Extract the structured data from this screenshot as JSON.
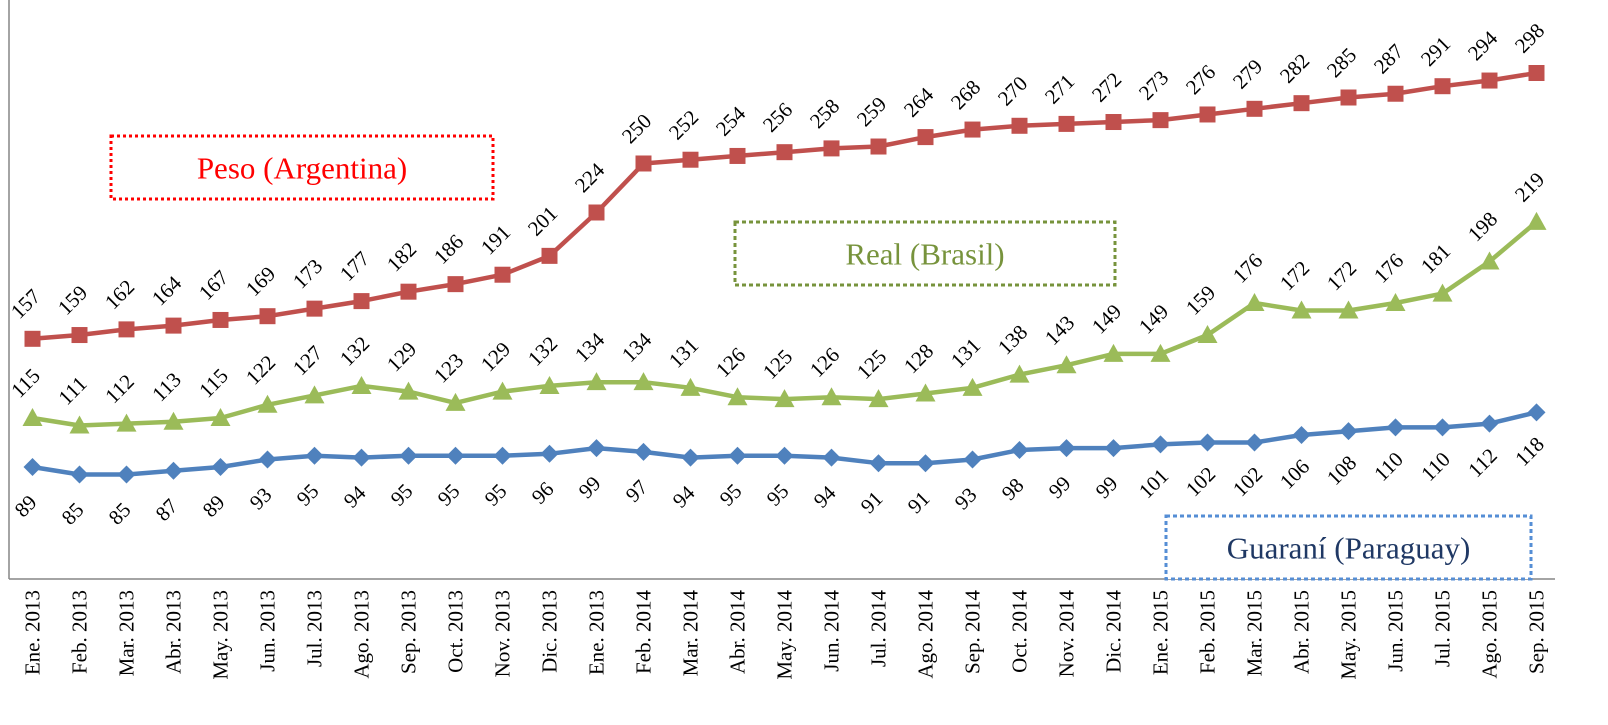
{
  "chart_data": {
    "type": "line",
    "title": "",
    "xlabel": "",
    "ylabel": "",
    "ylim": [
      70,
      305
    ],
    "grid": false,
    "categories": [
      "Ene. 2013",
      "Feb. 2013",
      "Mar. 2013",
      "Abr. 2013",
      "May. 2013",
      "Jun. 2013",
      "Jul. 2013",
      "Ago. 2013",
      "Sep. 2013",
      "Oct. 2013",
      "Nov. 2013",
      "Dic. 2013",
      "Ene. 2013",
      "Feb. 2014",
      "Mar. 2014",
      "Abr. 2014",
      "May. 2014",
      "Jun. 2014",
      "Jul. 2014",
      "Ago. 2014",
      "Sep. 2014",
      "Oct. 2014",
      "Nov. 2014",
      "Dic. 2014",
      "Ene. 2015",
      "Feb. 2015",
      "Mar. 2015",
      "Abr. 2015",
      "May. 2015",
      "Jun. 2015",
      "Jul. 2015",
      "Ago. 2015",
      "Sep. 2015"
    ],
    "series": [
      {
        "name": "Peso (Argentina)",
        "color": "#C0504D",
        "marker": "square",
        "label_position": "above",
        "legend_color": "#FF0000",
        "legend_border": "#FF0000",
        "values": [
          157,
          159,
          162,
          164,
          167,
          169,
          173,
          177,
          182,
          186,
          191,
          201,
          224,
          250,
          252,
          254,
          256,
          258,
          259,
          264,
          268,
          270,
          271,
          272,
          273,
          276,
          279,
          282,
          285,
          287,
          291,
          294,
          298
        ]
      },
      {
        "name": "Real (Brasil)",
        "color": "#9BBB59",
        "marker": "triangle",
        "label_position": "above",
        "legend_color": "#77933C",
        "legend_border": "#77933C",
        "values": [
          115,
          111,
          112,
          113,
          115,
          122,
          127,
          132,
          129,
          123,
          129,
          132,
          134,
          134,
          131,
          126,
          125,
          126,
          125,
          128,
          131,
          138,
          143,
          149,
          149,
          159,
          176,
          172,
          172,
          176,
          181,
          198,
          219
        ]
      },
      {
        "name": "Guaraní (Paraguay)",
        "color": "#4F81BD",
        "marker": "diamond",
        "label_position": "below",
        "legend_color": "#1F3864",
        "legend_border": "#558ED5",
        "values": [
          89,
          85,
          85,
          87,
          89,
          93,
          95,
          94,
          95,
          95,
          95,
          96,
          99,
          97,
          94,
          95,
          95,
          94,
          91,
          91,
          93,
          98,
          99,
          99,
          101,
          102,
          102,
          106,
          108,
          110,
          110,
          112,
          118
        ]
      }
    ]
  }
}
